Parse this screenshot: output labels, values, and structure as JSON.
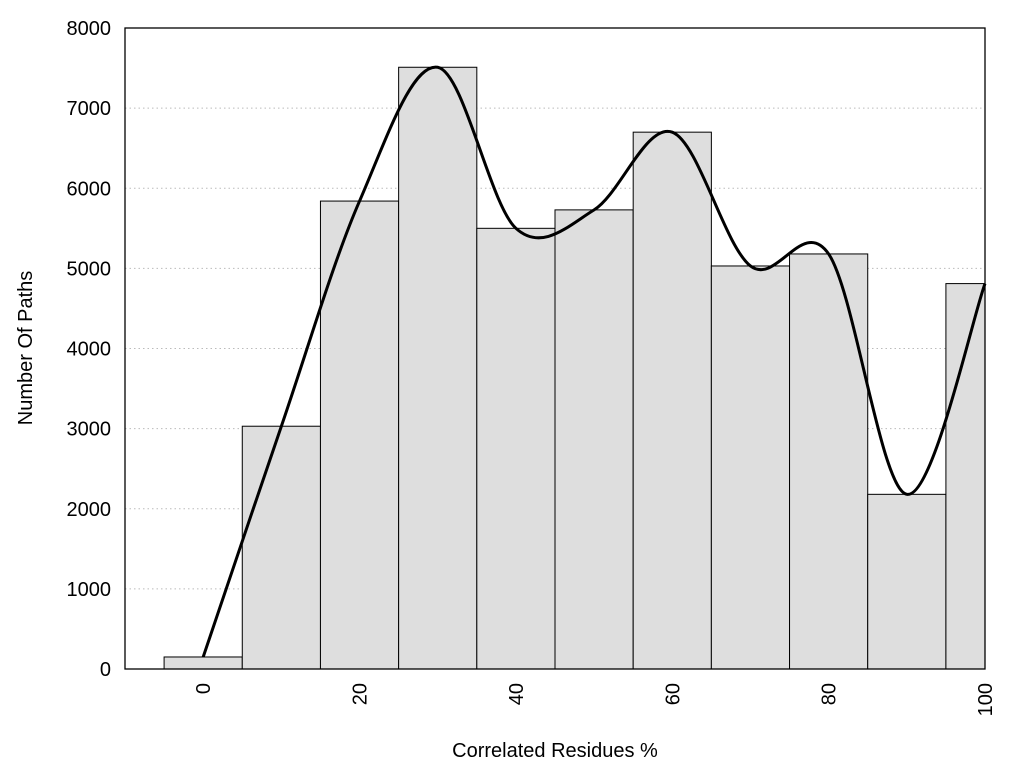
{
  "chart_data": {
    "type": "bar",
    "title": "",
    "xlabel": "Correlated Residues %",
    "ylabel": "Number Of Paths",
    "x": [
      0,
      10,
      20,
      30,
      40,
      50,
      60,
      70,
      80,
      90,
      100
    ],
    "values": [
      150,
      3030,
      5840,
      7510,
      5500,
      5730,
      6700,
      5030,
      5180,
      2180,
      4810
    ],
    "bin_width": 10,
    "xlim": [
      -10,
      100
    ],
    "ylim": [
      0,
      8000
    ],
    "xticks": [
      "0",
      "20",
      "40",
      "60",
      "80",
      "100"
    ],
    "yticks": [
      "0",
      "1000",
      "2000",
      "3000",
      "4000",
      "5000",
      "6000",
      "7000",
      "8000"
    ],
    "grid": "horizontal dotted",
    "overlay": "smooth line through bar tops",
    "colors": {
      "bar_fill": "#dedede",
      "bar_stroke": "#000000",
      "line": "#000000",
      "grid": "#bbbbbb"
    }
  }
}
